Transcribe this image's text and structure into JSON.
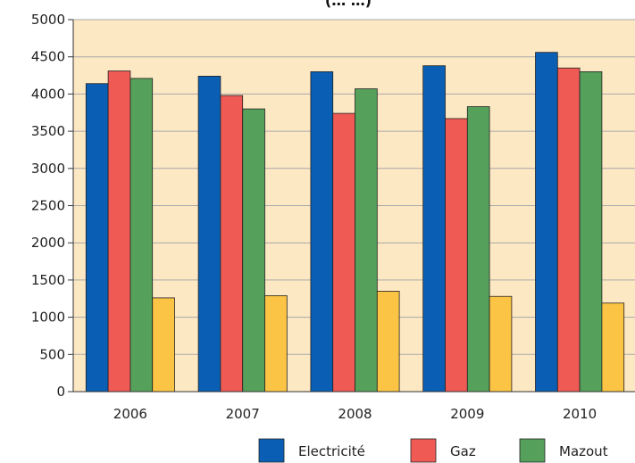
{
  "chart_data": {
    "type": "bar",
    "title": "(… …)",
    "categories": [
      "2006",
      "2007",
      "2008",
      "2009",
      "2010"
    ],
    "series": [
      {
        "name": "Electricité",
        "color": "#0a5fb4",
        "values": [
          4140,
          4240,
          4300,
          4380,
          4560
        ]
      },
      {
        "name": "Gaz",
        "color": "#f05a55",
        "values": [
          4310,
          3980,
          3740,
          3670,
          4350
        ]
      },
      {
        "name": "Mazout",
        "color": "#55a05a",
        "values": [
          4210,
          3800,
          4070,
          3830,
          4300
        ]
      },
      {
        "name": "",
        "color": "#fcc444",
        "values": [
          1260,
          1290,
          1350,
          1280,
          1190
        ]
      }
    ],
    "ylim": [
      0,
      5000
    ],
    "yticks": [
      "0",
      "500",
      "1000",
      "1500",
      "2000",
      "2500",
      "3000",
      "3500",
      "4000",
      "4500",
      "5000"
    ],
    "grid": true,
    "legend": "bottom-right",
    "plot_background": "#fde8c4"
  }
}
